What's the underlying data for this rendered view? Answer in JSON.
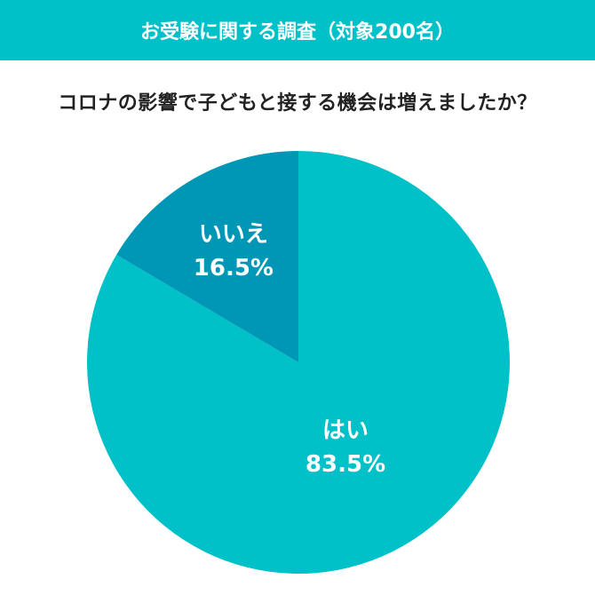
{
  "header": {
    "title": "お受験に関する調査（対象200名）"
  },
  "question": "コロナの影響で子どもと接する機会は増えましたか？",
  "colors": {
    "banner": "#00c0c8",
    "slice_yes": "#00c0c8",
    "slice_no": "#0097b7",
    "label_text": "#ffffff",
    "question_text": "#222222"
  },
  "chart_data": {
    "type": "pie",
    "title": "コロナの影響で子どもと接する機会は増えましたか？",
    "slices": [
      {
        "label": "はい",
        "value": 83.5,
        "display": "83.5%",
        "color": "#00c0c8"
      },
      {
        "label": "いいえ",
        "value": 16.5,
        "display": "16.5%",
        "color": "#0097b7"
      }
    ],
    "start_angle": "top",
    "direction": "clockwise"
  }
}
